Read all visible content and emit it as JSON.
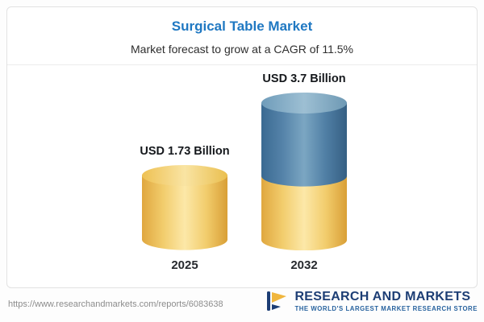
{
  "header": {
    "title": "Surgical Table Market",
    "subtitle": "Market forecast to grow at a CAGR of 11.5%"
  },
  "chart_data": {
    "type": "bar",
    "variant": "3d-cylinder-stacked",
    "title": "Surgical Table Market",
    "subtitle": "Market forecast to grow at a CAGR of 11.5%",
    "cagr_percent": 11.5,
    "unit": "USD Billion",
    "categories": [
      "2025",
      "2032"
    ],
    "values": [
      1.73,
      3.7
    ],
    "ylim": [
      0,
      4
    ],
    "grid": false,
    "legend": false,
    "bars": [
      {
        "year": "2025",
        "value": 1.73,
        "label": "USD 1.73 Billion",
        "segments": [
          "gold"
        ]
      },
      {
        "year": "2032",
        "value": 3.7,
        "label": "USD 3.7 Billion",
        "segments": [
          "gold",
          "steel-blue"
        ]
      }
    ],
    "colors": {
      "gold": "#f2cd6d",
      "steel_blue": "#5583a9",
      "title_blue": "#1f78c2",
      "text_dark": "#15181c"
    }
  },
  "footer": {
    "url": "https://www.researchandmarkets.com/reports/6083638",
    "brand": "RESEARCH AND MARKETS",
    "tagline": "THE WORLD'S LARGEST MARKET RESEARCH STORE",
    "brand_navy": "#1d3e75",
    "brand_gold": "#f0b63e"
  }
}
